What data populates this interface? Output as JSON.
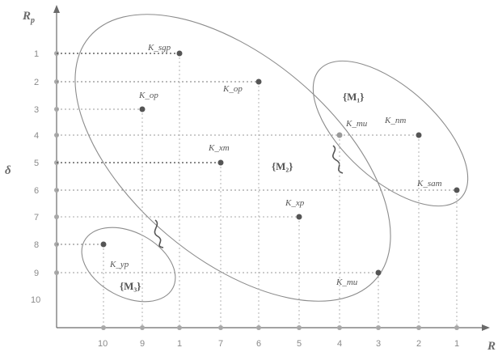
{
  "axes": {
    "y_label": "R",
    "y_label_sub": "p",
    "y_side_label": "δ",
    "x_label": "R",
    "y_ticks": [
      "1",
      "2",
      "3",
      "4",
      "5",
      "6",
      "7",
      "8",
      "9",
      "10"
    ],
    "x_ticks": [
      "10",
      "9",
      "1",
      "7",
      "6",
      "5",
      "4",
      "3",
      "2",
      "1"
    ]
  },
  "sets": [
    {
      "id": "m1",
      "label": "{M₁}"
    },
    {
      "id": "m2",
      "label": "{M₂}"
    },
    {
      "id": "m3",
      "label": "{M₃}"
    }
  ],
  "points": [
    {
      "label": "K_sgp"
    },
    {
      "label": "K_op"
    },
    {
      "label": "K_op"
    },
    {
      "label": "K_xm"
    },
    {
      "label": "K_xp"
    },
    {
      "label": "K_mu"
    },
    {
      "label": "K_nm"
    },
    {
      "label": "K_sam"
    },
    {
      "label": "K_yp"
    },
    {
      "label": "K_mu"
    }
  ],
  "colors": {
    "axis": "#6a6a6a",
    "ellipse": "#8c8c8c",
    "guide": "#9a9a9a",
    "point": "#555555",
    "tick_marker": "#a8a8a8"
  }
}
